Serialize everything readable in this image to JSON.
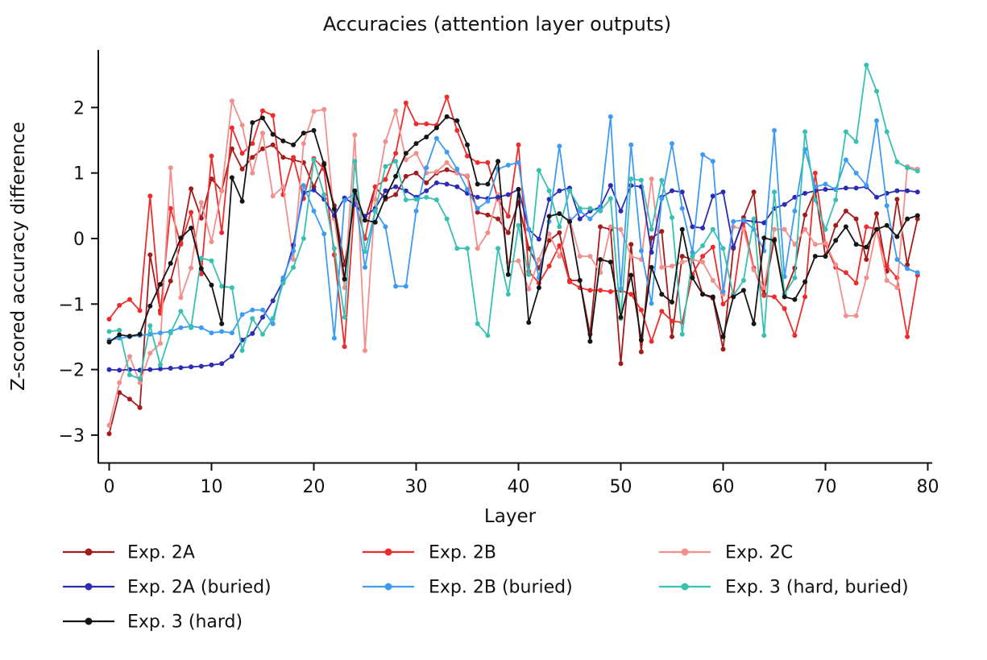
{
  "title": "Accuracies (attention layer outputs)",
  "chart_data": {
    "type": "line",
    "title": "Accuracies (attention layer outputs)",
    "xlabel": "Layer",
    "ylabel": "Z-scored accuracy difference",
    "xlim": [
      -1,
      80.5
    ],
    "ylim": [
      -3.4,
      2.9
    ],
    "xticks": [
      0,
      10,
      20,
      30,
      40,
      50,
      60,
      70,
      80
    ],
    "yticks": [
      2,
      1,
      0,
      -1,
      -2,
      -3
    ],
    "grid": false,
    "legend_position": "below-left, 3 columns",
    "marker": "dot",
    "x_range_of_data": [
      0,
      79
    ],
    "series": [
      {
        "name": "Exp. 2A",
        "color": "#a31c1c",
        "values": [
          -2.98,
          -2.35,
          -2.45,
          -2.58,
          -0.25,
          -1.1,
          -0.65,
          -0.07,
          0.76,
          0.31,
          0.91,
          0.73,
          1.37,
          1.06,
          1.24,
          1.37,
          1.43,
          1.24,
          1.2,
          1.16,
          0.79,
          1.15,
          0.5,
          -0.4,
          0.6,
          0.28,
          0.79,
          0.6,
          0.67,
          0.95,
          1.0,
          0.85,
          1.0,
          1.05,
          1.0,
          0.95,
          0.4,
          0.36,
          0.3,
          0.09,
          0.55,
          -0.15,
          -0.45,
          -0.03,
          0.09,
          -0.64,
          -0.64,
          -1.46,
          0.18,
          0.14,
          -1.91,
          -0.09,
          -1.73,
          0.01,
          0.11,
          -1.5,
          -0.27,
          -0.32,
          -0.85,
          -0.91,
          -1.69,
          -0.15,
          0.32,
          0.71,
          -0.85,
          -0.01,
          -0.85,
          -0.45,
          0.36,
          0.73,
          -0.27,
          0.2,
          0.42,
          0.3,
          -0.32,
          0.38,
          -0.5,
          0.6,
          -0.4,
          0.3
        ]
      },
      {
        "name": "Exp. 2B",
        "color": "#ee2c2c",
        "values": [
          -1.23,
          -1.02,
          -0.93,
          -1.1,
          0.65,
          -1.14,
          0.46,
          -0.09,
          0.4,
          -0.54,
          1.26,
          0.09,
          1.69,
          1.3,
          1.45,
          1.95,
          1.88,
          0.67,
          1.24,
          0.61,
          1.22,
          1.06,
          -0.25,
          -1.65,
          0.6,
          0.0,
          0.79,
          0.9,
          1.3,
          2.07,
          1.75,
          1.75,
          1.73,
          2.16,
          1.65,
          1.26,
          1.16,
          1.16,
          0.6,
          0.34,
          1.43,
          -0.5,
          -0.68,
          -0.42,
          -0.11,
          -0.66,
          -0.75,
          -0.79,
          -0.79,
          -0.81,
          -0.79,
          -0.85,
          -1.09,
          -1.57,
          -1.11,
          -1.26,
          -1.28,
          -0.55,
          -0.27,
          -0.13,
          -1.0,
          -0.85,
          0.25,
          -0.45,
          -0.87,
          -0.89,
          -1.07,
          -1.48,
          -0.89,
          1.0,
          -0.09,
          -0.44,
          -0.52,
          -0.68,
          0.18,
          0.14,
          -0.42,
          -0.6,
          -1.5,
          -0.56
        ]
      },
      {
        "name": "Exp. 2C",
        "color": "#f28e8c",
        "values": [
          -2.85,
          -2.2,
          -1.8,
          -2.2,
          -1.75,
          -1.6,
          1.08,
          -0.9,
          -0.45,
          0.55,
          -0.05,
          0.73,
          2.1,
          1.73,
          1.0,
          1.61,
          0.65,
          0.79,
          -0.32,
          1.45,
          1.94,
          1.97,
          0.3,
          -0.75,
          1.58,
          -1.71,
          0.6,
          1.48,
          1.95,
          1.2,
          1.3,
          1.0,
          1.02,
          1.16,
          1.0,
          0.96,
          -0.15,
          0.09,
          0.67,
          -0.36,
          -0.34,
          -0.77,
          -0.32,
          0.07,
          -0.27,
          0.3,
          -0.27,
          -0.27,
          -0.52,
          0.18,
          0.14,
          -0.27,
          -0.32,
          0.91,
          -0.44,
          -0.42,
          -0.36,
          -0.32,
          -0.36,
          -0.64,
          -0.85,
          0.18,
          0.14,
          -0.48,
          -0.75,
          0.14,
          0.14,
          -0.09,
          0.14,
          -0.09,
          -0.07,
          -0.4,
          -1.18,
          -1.18,
          -0.6,
          0.14,
          -0.64,
          -0.75,
          1.1,
          1.06
        ]
      },
      {
        "name": "Exp. 2A (buried)",
        "color": "#2c2cb2",
        "values": [
          -2.0,
          -2.01,
          -2.0,
          -2.01,
          -2.0,
          -1.99,
          -1.98,
          -1.97,
          -1.96,
          -1.95,
          -1.93,
          -1.91,
          -1.8,
          -1.55,
          -1.45,
          -1.2,
          -0.95,
          -0.65,
          -0.1,
          0.7,
          0.74,
          0.6,
          0.35,
          0.62,
          0.52,
          0.34,
          0.46,
          0.73,
          0.79,
          0.73,
          0.63,
          0.73,
          0.85,
          0.83,
          0.79,
          0.69,
          0.63,
          0.61,
          0.63,
          0.67,
          0.75,
          0.14,
          -0.01,
          0.6,
          0.73,
          0.77,
          0.3,
          0.42,
          0.48,
          0.81,
          0.42,
          0.81,
          0.79,
          -0.21,
          0.63,
          0.73,
          0.71,
          0.18,
          0.16,
          0.65,
          0.71,
          -0.13,
          0.28,
          0.26,
          0.24,
          0.46,
          0.52,
          0.63,
          0.69,
          0.73,
          0.75,
          0.75,
          0.77,
          0.77,
          0.79,
          0.63,
          0.69,
          0.73,
          0.73,
          0.71
        ]
      },
      {
        "name": "Exp. 2B (buried)",
        "color": "#3e9bf4",
        "values": [
          -1.55,
          -1.52,
          -1.5,
          -1.48,
          -1.46,
          -1.44,
          -1.42,
          -1.36,
          -1.34,
          -1.36,
          -1.44,
          -1.42,
          -1.44,
          -1.16,
          -1.09,
          -1.09,
          -1.3,
          -0.6,
          -0.19,
          0.81,
          0.42,
          0.07,
          -1.52,
          0.58,
          0.69,
          -0.44,
          0.42,
          0.18,
          -0.73,
          -0.73,
          0.42,
          1.08,
          1.53,
          1.32,
          1.06,
          0.75,
          0.46,
          0.57,
          1.06,
          1.12,
          1.16,
          0.14,
          -0.6,
          0.26,
          1.41,
          0.26,
          0.42,
          0.3,
          0.46,
          1.86,
          -0.77,
          1.43,
          -0.19,
          -0.99,
          0.61,
          1.45,
          0.46,
          -0.21,
          1.28,
          1.18,
          -0.81,
          0.26,
          0.28,
          0.14,
          -0.19,
          1.65,
          -0.58,
          0.42,
          1.36,
          0.79,
          0.83,
          0.75,
          1.2,
          1.0,
          0.81,
          1.8,
          0.5,
          -0.32,
          -0.46,
          -0.52
        ]
      },
      {
        "name": "Exp. 3 (hard, buried)",
        "color": "#38c0b2",
        "values": [
          -1.42,
          -1.4,
          -2.08,
          -2.14,
          -1.33,
          -1.93,
          -1.44,
          -1.11,
          -1.36,
          -0.3,
          -0.34,
          -0.73,
          -0.75,
          -1.71,
          -1.22,
          -1.46,
          -1.22,
          -0.68,
          -0.44,
          0.0,
          1.2,
          0.67,
          -0.15,
          -1.2,
          1.18,
          -0.2,
          0.42,
          1.1,
          1.18,
          0.59,
          0.6,
          0.63,
          0.59,
          0.3,
          -0.15,
          -0.15,
          -1.3,
          -1.48,
          -0.15,
          -0.85,
          0.2,
          -0.55,
          1.04,
          0.73,
          0.18,
          0.73,
          0.46,
          0.46,
          0.42,
          0.61,
          -1.22,
          0.91,
          0.89,
          0.14,
          0.89,
          0.32,
          -1.46,
          -0.27,
          -0.11,
          0.14,
          -0.15,
          -0.87,
          -0.64,
          0.3,
          -1.48,
          0.71,
          -0.85,
          -0.6,
          1.63,
          0.59,
          0.14,
          0.59,
          1.63,
          1.48,
          2.65,
          2.25,
          1.63,
          1.17,
          1.08,
          1.03
        ]
      },
      {
        "name": "Exp. 3 (hard)",
        "color": "#151515",
        "values": [
          -1.58,
          -1.47,
          -1.49,
          -1.46,
          -1.03,
          -0.7,
          -0.38,
          0.01,
          0.16,
          -0.46,
          -0.71,
          -1.3,
          0.93,
          0.57,
          1.77,
          1.84,
          1.59,
          1.49,
          1.43,
          1.61,
          1.65,
          1.13,
          0.45,
          -0.62,
          0.73,
          0.28,
          0.25,
          0.63,
          0.95,
          1.3,
          1.45,
          1.55,
          1.69,
          1.86,
          1.8,
          1.43,
          0.83,
          0.83,
          1.18,
          -0.55,
          0.75,
          -1.28,
          -0.75,
          0.34,
          0.38,
          0.26,
          -0.64,
          -1.57,
          -0.32,
          -0.36,
          -1.2,
          -0.56,
          -1.55,
          -0.44,
          -0.85,
          -0.97,
          0.14,
          -0.6,
          -0.85,
          -0.89,
          -1.5,
          -0.89,
          -0.79,
          -1.3,
          0.01,
          -0.03,
          -0.89,
          -0.93,
          -0.66,
          -0.27,
          -0.27,
          -0.03,
          0.18,
          -0.09,
          -0.13,
          0.14,
          0.2,
          0.03,
          0.3,
          0.35
        ]
      }
    ],
    "legend_entries": [
      "Exp. 2A",
      "Exp. 2B",
      "Exp. 2C",
      "Exp. 2A (buried)",
      "Exp. 2B (buried)",
      "Exp. 3 (hard, buried)",
      "Exp. 3 (hard)"
    ]
  }
}
